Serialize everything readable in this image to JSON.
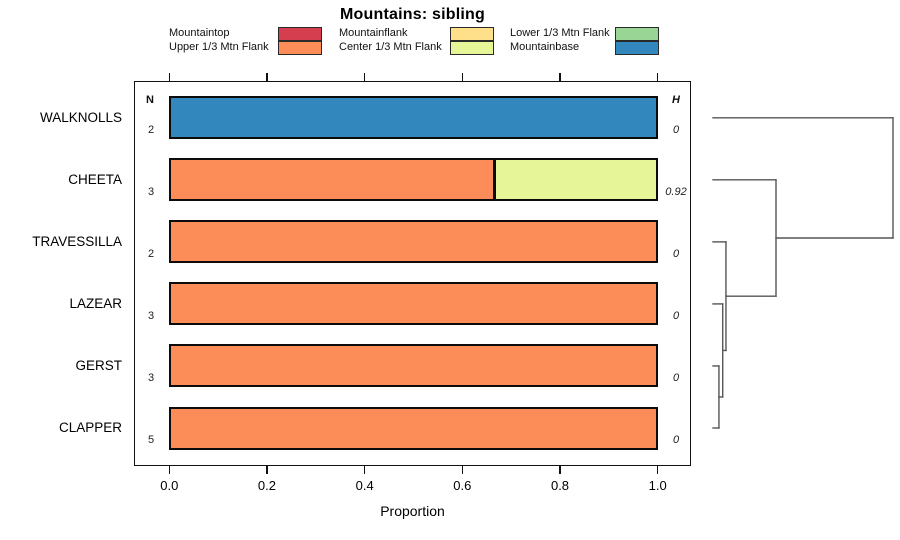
{
  "chart_data": {
    "type": "stacked_bar_horizontal_with_dendrogram",
    "title": "Mountains: sibling",
    "xlabel": "Proportion",
    "xlim": [
      0,
      1
    ],
    "xticks": [
      "0.0",
      "0.2",
      "0.4",
      "0.6",
      "0.8",
      "1.0"
    ],
    "grid": false,
    "columns": {
      "n_header": "N",
      "h_header": "H"
    },
    "legend": {
      "position": "top",
      "layout": "2 rows x 3 columns, row-major",
      "items": [
        {
          "label": "Mountaintop",
          "color": "#D53E4F"
        },
        {
          "label": "Mountainflank",
          "color": "#FEE08B"
        },
        {
          "label": "Lower 1/3 Mtn Flank",
          "color": "#99D594"
        },
        {
          "label": "Upper 1/3 Mtn Flank",
          "color": "#FC8D59"
        },
        {
          "label": "Center 1/3 Mtn Flank",
          "color": "#E6F598"
        },
        {
          "label": "Mountainbase",
          "color": "#3288BD"
        }
      ]
    },
    "rows": [
      {
        "category": "WALKNOLLS",
        "n": "2",
        "h": "0",
        "segments": [
          {
            "label": "Mountainbase",
            "value": 1.0,
            "color": "#3288BD"
          }
        ]
      },
      {
        "category": "CHEETA",
        "n": "3",
        "h": "0.92",
        "segments": [
          {
            "label": "Upper 1/3 Mtn Flank",
            "value": 0.667,
            "color": "#FC8D59"
          },
          {
            "label": "Center 1/3 Mtn Flank",
            "value": 0.333,
            "color": "#E6F598"
          }
        ]
      },
      {
        "category": "TRAVESSILLA",
        "n": "2",
        "h": "0",
        "segments": [
          {
            "label": "Upper 1/3 Mtn Flank",
            "value": 1.0,
            "color": "#FC8D59"
          }
        ]
      },
      {
        "category": "LAZEAR",
        "n": "3",
        "h": "0",
        "segments": [
          {
            "label": "Upper 1/3 Mtn Flank",
            "value": 1.0,
            "color": "#FC8D59"
          }
        ]
      },
      {
        "category": "GERST",
        "n": "3",
        "h": "0",
        "segments": [
          {
            "label": "Upper 1/3 Mtn Flank",
            "value": 1.0,
            "color": "#FC8D59"
          }
        ]
      },
      {
        "category": "CLAPPER",
        "n": "5",
        "h": "0",
        "segments": [
          {
            "label": "Upper 1/3 Mtn Flank",
            "value": 1.0,
            "color": "#FC8D59"
          }
        ]
      }
    ],
    "dendrogram": {
      "side": "right",
      "merges": [
        {
          "children": [
            "GERST",
            "CLAPPER"
          ],
          "height": 0.033
        },
        {
          "children": [
            "LAZEAR",
            "@0"
          ],
          "height": 0.054
        },
        {
          "children": [
            "TRAVESSILLA",
            "@1"
          ],
          "height": 0.072
        },
        {
          "children": [
            "CHEETA",
            "@2"
          ],
          "height": 0.35
        },
        {
          "children": [
            "WALKNOLLS",
            "@3"
          ],
          "height": 1.0
        }
      ]
    }
  }
}
